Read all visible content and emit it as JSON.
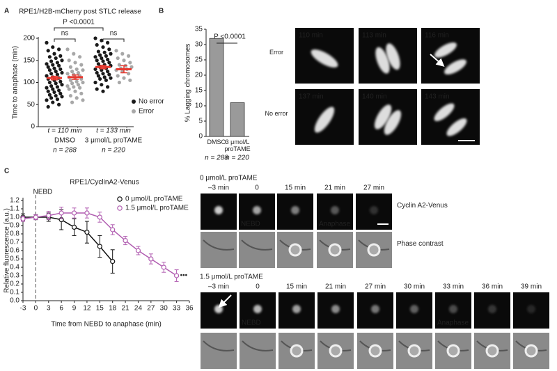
{
  "panel_labels": [
    "A",
    "B",
    "C"
  ],
  "chart_data": [
    {
      "type": "strip",
      "title": "RPE1/H2B-mCherry post STLC release",
      "ylabel": "Time to anaphase (min)",
      "categories": [
        "DMSO",
        "3 μmol/L proTAME"
      ],
      "category_stats": [
        "t = 110 min",
        "t = 133 min"
      ],
      "n_labels": [
        "n = 288",
        "n = 220"
      ],
      "ylim": [
        0,
        200
      ],
      "yticks": [
        0,
        50,
        100,
        150,
        200
      ],
      "mean_color": "#e8392f",
      "series": [
        {
          "name": "No error",
          "color": "#1a1a1a",
          "values": [
            [
              190,
              180,
              175,
              172,
              165,
              160,
              158,
              155,
              150,
              148,
              145,
              142,
              140,
              138,
              135,
              132,
              130,
              128,
              125,
              122,
              120,
              118,
              115,
              112,
              110,
              108,
              105,
              102,
              100,
              98,
              95,
              92,
              90,
              88,
              85,
              82,
              80,
              78,
              75,
              72,
              70,
              68,
              65,
              62,
              60,
              55,
              50,
              45
            ],
            [
              200,
              195,
              190,
              185,
              180,
              175,
              170,
              168,
              165,
              162,
              160,
              158,
              155,
              152,
              150,
              148,
              145,
              142,
              140,
              138,
              135,
              132,
              130,
              128,
              125,
              122,
              120,
              118,
              115,
              112,
              110,
              108,
              105,
              100,
              95,
              90,
              85,
              80
            ]
          ],
          "means": [
            110,
            135
          ],
          "errors": [
            4,
            4
          ]
        },
        {
          "name": "Error",
          "color": "#a8a8a8",
          "values": [
            [
              175,
              165,
              158,
              150,
              145,
              140,
              135,
              130,
              128,
              125,
              122,
              120,
              118,
              115,
              112,
              110,
              108,
              105,
              102,
              100,
              98,
              95,
              92,
              90,
              88,
              85,
              80,
              75,
              70,
              65,
              60,
              55
            ],
            [
              172,
              165,
              160,
              155,
              150,
              145,
              140,
              138,
              135,
              132,
              130,
              128,
              125,
              120,
              115,
              110,
              105,
              100
            ]
          ],
          "means": [
            112,
            130
          ],
          "errors": [
            5,
            8
          ]
        }
      ],
      "annotations": [
        "ns",
        "ns",
        "P <0.0001"
      ]
    },
    {
      "type": "bar",
      "ylabel": "% Lagging chromosomes",
      "categories": [
        "DMSO",
        "3 μmol/L proTAME"
      ],
      "values": [
        32,
        11
      ],
      "n_labels": [
        "n = 288",
        "n = 220"
      ],
      "color": "#9a9a9a",
      "ylim": [
        0,
        35
      ],
      "yticks": [
        0,
        5,
        10,
        15,
        20,
        25,
        30,
        35
      ],
      "annotations": [
        "P <0.0001"
      ]
    },
    {
      "type": "line",
      "title": "RPE1/CyclinA2-Venus",
      "xlabel": "Time from NEBD to anaphase (min)",
      "ylabel": "Relative fluorescence (a.u.)",
      "xlim": [
        -3,
        36
      ],
      "xticks": [
        -3,
        0,
        3,
        6,
        9,
        12,
        15,
        18,
        21,
        24,
        27,
        30,
        33,
        36
      ],
      "ylim": [
        0,
        1.2
      ],
      "yticks": [
        {
          "value": 0,
          "label": "0.0"
        },
        0.1,
        0.2,
        0.3,
        0.4,
        0.5,
        0.6,
        0.7,
        0.8,
        0.9,
        {
          "value": 1,
          "label": "1.0"
        },
        1.1,
        1.2
      ],
      "annotations": [
        "NEBD",
        "•••"
      ],
      "series": [
        {
          "name": "0 μmol/L proTAME",
          "color": "#111111",
          "x": [
            -3,
            0,
            3,
            6,
            9,
            12,
            15,
            18
          ],
          "values": [
            1.0,
            1.0,
            1.0,
            0.97,
            0.88,
            0.82,
            0.65,
            0.47
          ],
          "errors": [
            0.04,
            0.03,
            0.05,
            0.12,
            0.1,
            0.13,
            0.13,
            0.14
          ]
        },
        {
          "name": "1.5 μmol/L proTAME",
          "color": "#b05cb0",
          "x": [
            -3,
            0,
            3,
            6,
            9,
            12,
            15,
            18,
            21,
            24,
            27,
            30,
            33
          ],
          "values": [
            0.98,
            1.0,
            1.02,
            1.05,
            1.05,
            1.05,
            1.0,
            0.85,
            0.72,
            0.6,
            0.5,
            0.4,
            0.3
          ],
          "errors": [
            0.03,
            0.03,
            0.05,
            0.07,
            0.06,
            0.06,
            0.06,
            0.06,
            0.05,
            0.05,
            0.06,
            0.06,
            0.07
          ]
        }
      ]
    }
  ],
  "images": {
    "b": {
      "row_labels": [
        "Error",
        "No error"
      ],
      "time_labels": [
        [
          "110 min",
          "113 min",
          "116 min"
        ],
        [
          "137 min",
          "140 min",
          "143 min"
        ]
      ]
    },
    "c_top": {
      "title": "0 μmol/L proTAME",
      "time_labels": [
        "–3 min",
        "0",
        "15 min",
        "21 min",
        "27 min"
      ],
      "overlays": [
        null,
        "NEBD",
        null,
        "Anaphase",
        null
      ],
      "row_labels": [
        "Cyclin A2-Venus",
        "Phase contrast"
      ]
    },
    "c_bottom": {
      "title": "1.5 μmol/L proTAME",
      "time_labels": [
        "–3 min",
        "0",
        "15 min",
        "21 min",
        "27 min",
        "30 min",
        "33 min",
        "36 min",
        "39 min"
      ],
      "overlays": [
        null,
        "NEBD",
        null,
        null,
        null,
        null,
        "Anaphase",
        null,
        null
      ]
    }
  }
}
